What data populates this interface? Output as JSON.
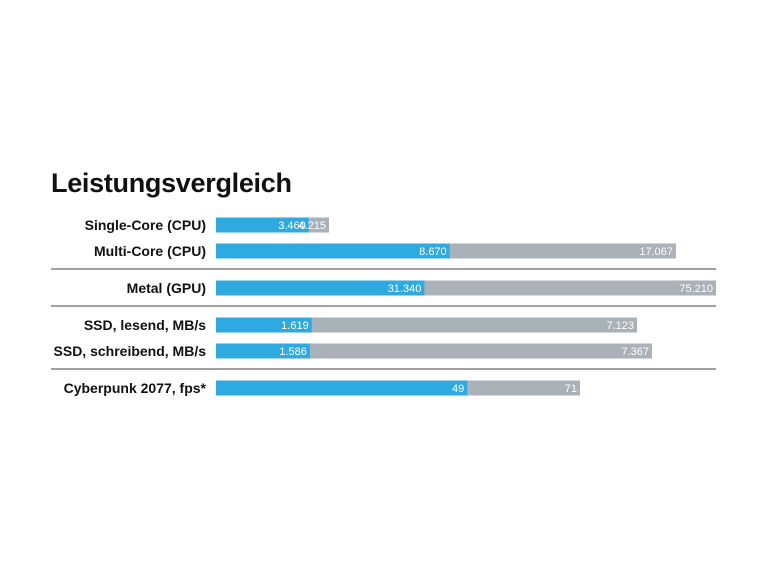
{
  "title": "Leistungsvergleich",
  "colors": {
    "primary": "#2eaae1",
    "secondary": "#a9b1b9",
    "separator": "#444444"
  },
  "chart_data": {
    "type": "bar",
    "orientation": "horizontal",
    "title": "Leistungsvergleich",
    "categories": [
      "Single-Core (CPU)",
      "Multi-Core (CPU)",
      "Metal (GPU)",
      "SSD, lesend, MB/s",
      "SSD, schreibend, MB/s",
      "Cyberpunk 2077, fps*"
    ],
    "groups": [
      [
        0,
        1
      ],
      [
        2
      ],
      [
        3,
        4
      ],
      [
        5
      ]
    ],
    "series": [
      {
        "values": [
          3460,
          8670,
          31340,
          1619,
          1586,
          49
        ],
        "labels": [
          "3.460",
          "8.670",
          "31.340",
          "1.619",
          "1.586",
          "49"
        ]
      },
      {
        "values": [
          4215,
          17067,
          75210,
          7123,
          7367,
          71
        ],
        "labels": [
          "4.215",
          "17.067",
          "75.210",
          "7.123",
          "7.367",
          "71"
        ]
      }
    ],
    "grid": false,
    "legend": "none"
  }
}
